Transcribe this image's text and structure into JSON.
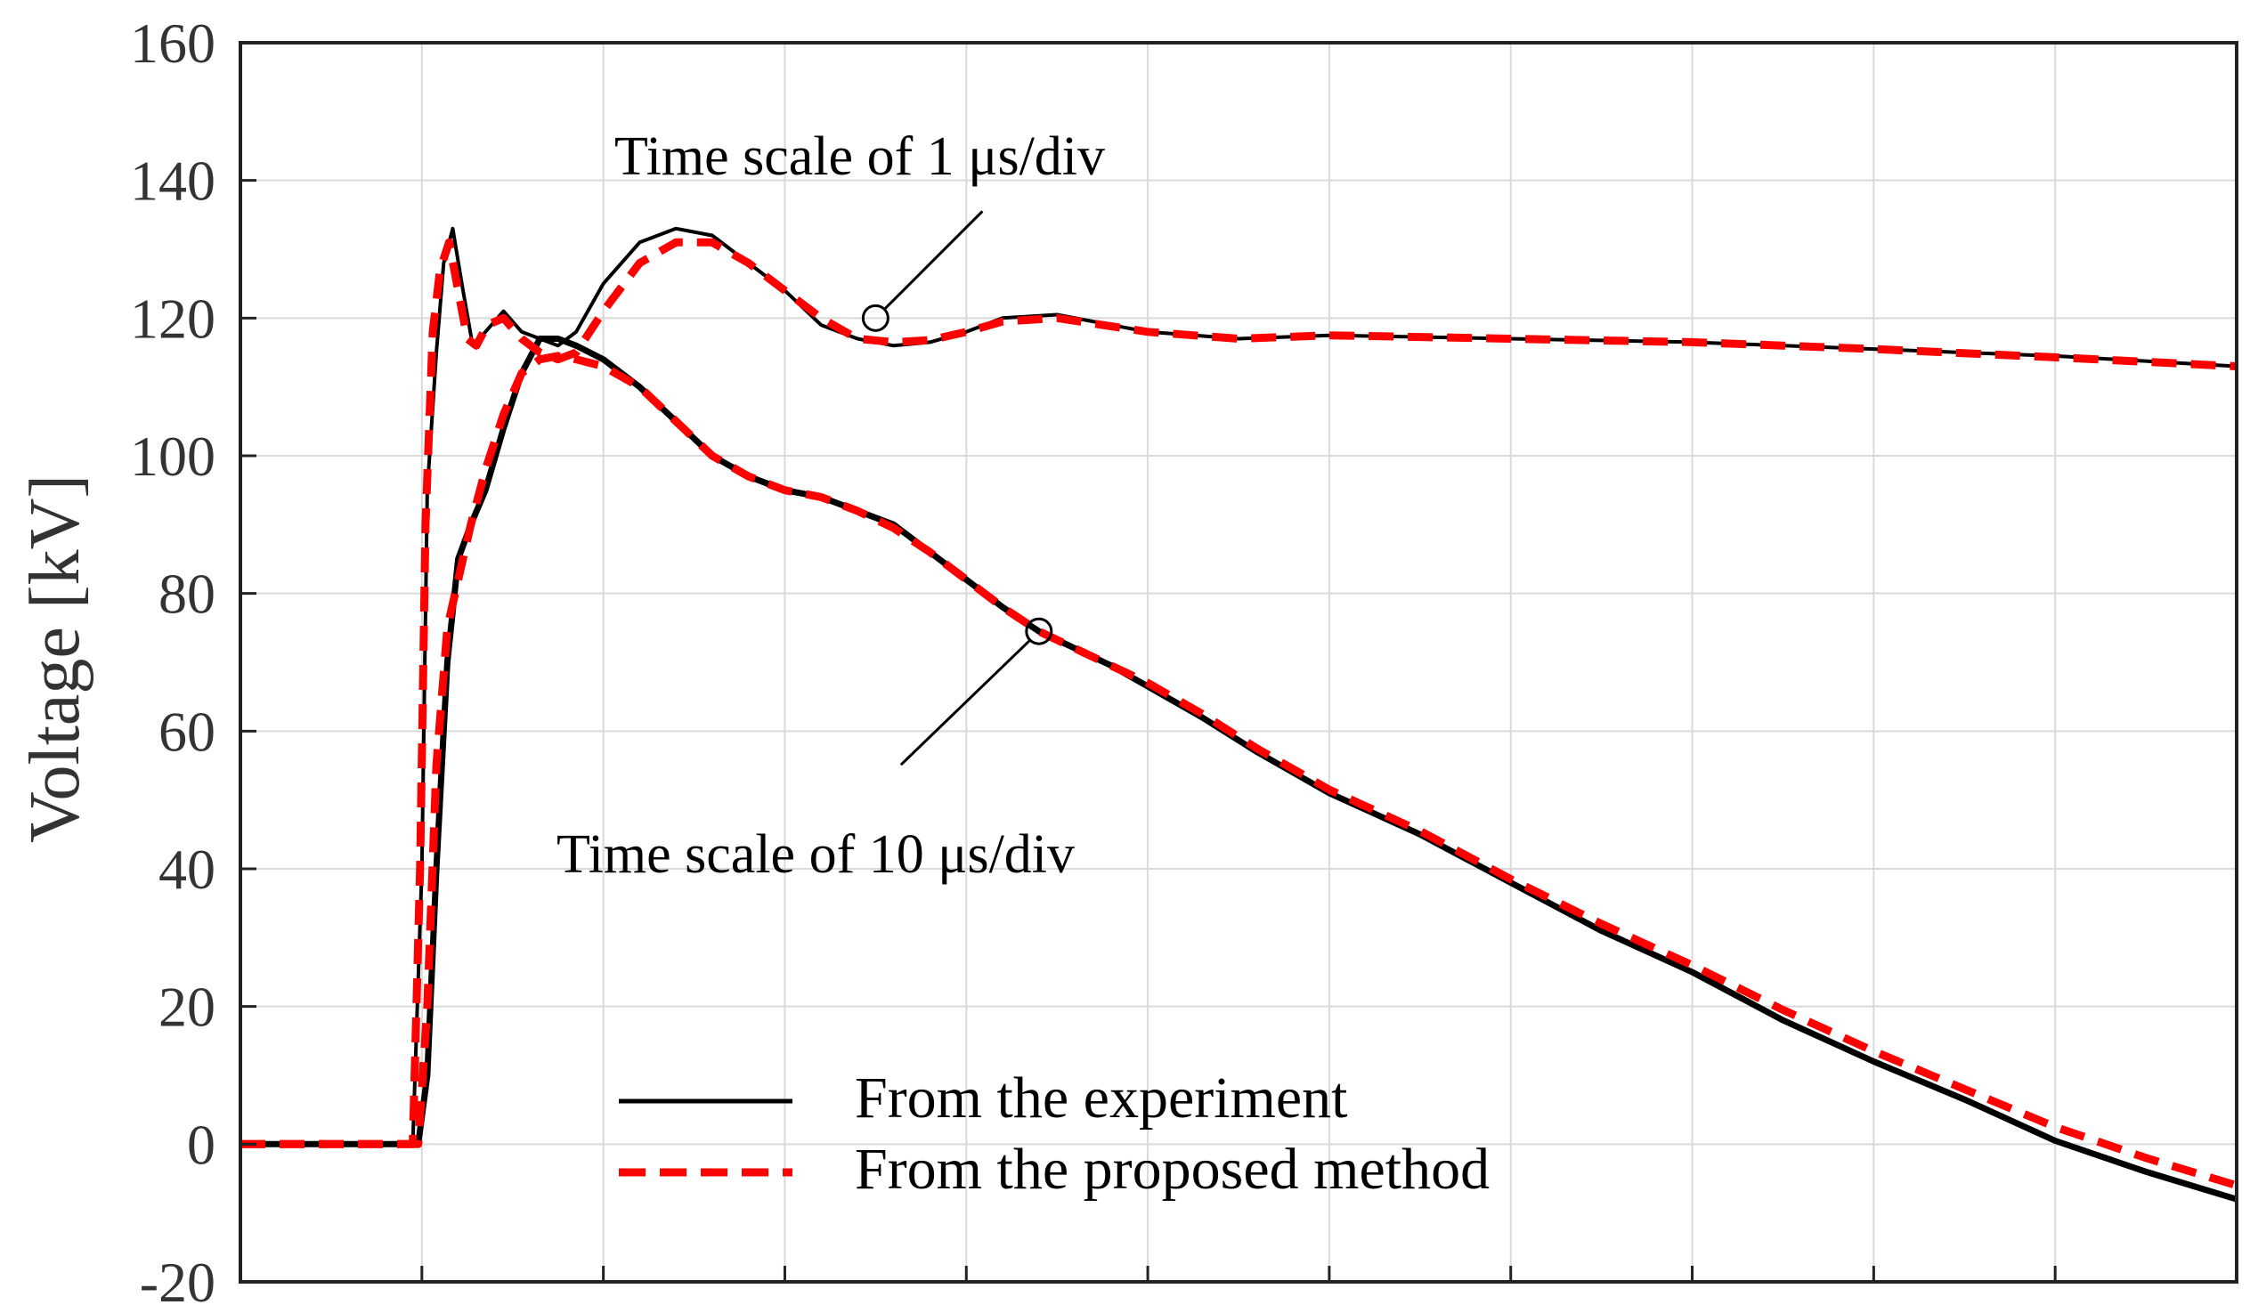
{
  "chart_data": {
    "type": "line",
    "title": "",
    "xlabel": "",
    "ylabel": "Voltage [kV]",
    "xlim": [
      0,
      11
    ],
    "ylim": [
      -20,
      160
    ],
    "yticks": [
      -20,
      0,
      20,
      40,
      60,
      80,
      100,
      120,
      140,
      160
    ],
    "xtick_labels": [],
    "grid": true,
    "legend_position": "bottom-center",
    "annotations": [
      {
        "text": "Time scale of 1 μs/div",
        "target": [
          3.5,
          120
        ]
      },
      {
        "text": "Time scale of 10 μs/div",
        "target": [
          4.4,
          74.5
        ]
      }
    ],
    "series": [
      {
        "name": "From the experiment",
        "trace": "1 μs/div",
        "style": "solid",
        "color": "#000000",
        "x": [
          0,
          0.5,
          0.95,
          1.0,
          1.03,
          1.08,
          1.12,
          1.17,
          1.22,
          1.28,
          1.35,
          1.45,
          1.55,
          1.65,
          1.75,
          1.85,
          2.0,
          2.2,
          2.4,
          2.6,
          2.8,
          3.0,
          3.2,
          3.4,
          3.6,
          3.8,
          4.0,
          4.2,
          4.5,
          5.0,
          5.5,
          6.0,
          7.0,
          8.0,
          9.0,
          10.0,
          11.0
        ],
        "y": [
          0,
          0,
          0,
          40,
          95,
          115,
          128,
          133,
          125,
          116,
          118,
          121,
          118,
          117,
          116,
          118,
          125,
          131,
          133,
          132,
          128,
          124,
          119,
          117,
          116,
          116.5,
          118,
          120,
          120.5,
          118,
          117,
          117.5,
          117,
          116.5,
          115.5,
          114.5,
          113
        ]
      },
      {
        "name": "From the proposed method",
        "trace": "1 μs/div",
        "style": "dashed",
        "color": "#ff0000",
        "x": [
          0,
          0.5,
          0.95,
          0.99,
          1.02,
          1.06,
          1.1,
          1.15,
          1.2,
          1.25,
          1.3,
          1.36,
          1.45,
          1.55,
          1.65,
          1.75,
          1.85,
          2.0,
          2.2,
          2.4,
          2.6,
          2.8,
          3.0,
          3.2,
          3.4,
          3.6,
          3.8,
          4.0,
          4.2,
          4.5,
          5.0,
          5.5,
          6.0,
          7.0,
          8.0,
          9.0,
          10.0,
          11.0
        ],
        "y": [
          0,
          0,
          0,
          40,
          90,
          118,
          127,
          131,
          124,
          117,
          116,
          119,
          120,
          117,
          115,
          114,
          115,
          121,
          128,
          131,
          131,
          128,
          124,
          120,
          117,
          116.5,
          116.8,
          118,
          119.5,
          120,
          118,
          117,
          117.5,
          117,
          116.5,
          115.5,
          114.3,
          113
        ]
      },
      {
        "name": "From the experiment",
        "trace": "10 μs/div",
        "style": "solid",
        "color": "#000000",
        "x": [
          0,
          0.5,
          0.98,
          1.03,
          1.08,
          1.14,
          1.2,
          1.27,
          1.35,
          1.45,
          1.55,
          1.65,
          1.75,
          1.85,
          2.0,
          2.2,
          2.4,
          2.6,
          2.8,
          3.0,
          3.2,
          3.4,
          3.6,
          3.8,
          4.0,
          4.2,
          4.4,
          4.6,
          4.8,
          5.0,
          5.3,
          5.6,
          6.0,
          6.5,
          7.0,
          7.5,
          8.0,
          8.5,
          9.0,
          9.5,
          10.0,
          10.5,
          11.0
        ],
        "y": [
          0,
          0,
          0,
          10,
          40,
          70,
          85,
          90,
          95,
          104,
          112,
          117,
          117,
          116,
          114,
          110,
          105,
          100,
          97,
          95,
          94,
          92,
          90,
          86,
          82,
          78,
          74.5,
          72,
          69.5,
          66.5,
          62,
          57,
          51,
          45,
          38,
          31,
          25,
          18,
          12,
          6.5,
          0.5,
          -4,
          -8
        ]
      },
      {
        "name": "From the proposed method",
        "trace": "10 μs/div",
        "style": "dashed",
        "color": "#ff0000",
        "x": [
          0,
          0.5,
          0.98,
          1.03,
          1.08,
          1.14,
          1.2,
          1.27,
          1.35,
          1.45,
          1.55,
          1.65,
          1.75,
          1.85,
          2.0,
          2.2,
          2.4,
          2.6,
          2.8,
          3.0,
          3.2,
          3.4,
          3.6,
          3.8,
          4.0,
          4.2,
          4.4,
          4.6,
          4.8,
          5.0,
          5.3,
          5.6,
          6.0,
          6.5,
          7.0,
          7.5,
          8.0,
          8.5,
          9.0,
          9.5,
          10.0,
          10.5,
          11.0
        ],
        "y": [
          0,
          0,
          0,
          20,
          55,
          75,
          82,
          90,
          98,
          106,
          112,
          114,
          114.5,
          114,
          113,
          110,
          105,
          100,
          97,
          95,
          94,
          92,
          89.5,
          86,
          82,
          78,
          74.5,
          72,
          69.5,
          67,
          62.5,
          57.5,
          51.5,
          45.5,
          38.5,
          32,
          26,
          19.5,
          13.5,
          8,
          2.5,
          -2,
          -6
        ]
      }
    ]
  }
}
